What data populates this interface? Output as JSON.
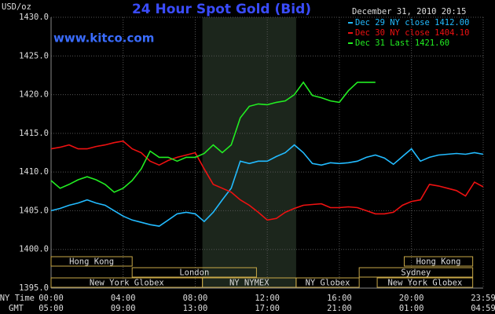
{
  "chart_data": {
    "type": "line",
    "title": "24 Hour Spot Gold (Bid)",
    "subtitle": "www.kitco.com",
    "timestamp": "December 31, 2010 20:15",
    "y_label": "USD/oz",
    "x_label": "NY Time",
    "x2_label": "GMT",
    "x": [
      0,
      0.5,
      1,
      1.5,
      2,
      2.5,
      3,
      3.5,
      4,
      4.5,
      5,
      5.5,
      6,
      6.5,
      7,
      7.5,
      8,
      8.5,
      9,
      9.5,
      10,
      10.5,
      11,
      11.5,
      12,
      12.5,
      13,
      13.5,
      14,
      14.5,
      15,
      15.5,
      16,
      16.5,
      17,
      17.5,
      18,
      18.5,
      19,
      19.5,
      20,
      20.5,
      21,
      21.5,
      22,
      22.5,
      23,
      23.5,
      23.98
    ],
    "series": [
      {
        "name": "Dec 29 NY close 1412.00",
        "color": "#22bbff",
        "values": [
          1405.0,
          1405.3,
          1405.7,
          1406.0,
          1406.4,
          1406.0,
          1405.7,
          1405.0,
          1404.3,
          1403.8,
          1403.5,
          1403.2,
          1403.0,
          1403.8,
          1404.6,
          1404.8,
          1404.6,
          1403.6,
          1404.8,
          1406.4,
          1407.9,
          1411.4,
          1411.1,
          1411.4,
          1411.4,
          1412.0,
          1412.5,
          1413.5,
          1412.5,
          1411.1,
          1410.9,
          1411.2,
          1411.1,
          1411.2,
          1411.4,
          1411.9,
          1412.2,
          1411.8,
          1411.0,
          1412.0,
          1413.0,
          1411.4,
          1411.9,
          1412.2,
          1412.3,
          1412.4,
          1412.3,
          1412.5,
          1412.3
        ]
      },
      {
        "name": "Dec 30 NY close 1404.10",
        "color": "#ee1111",
        "values": [
          1413.0,
          1413.2,
          1413.5,
          1413.0,
          1413.0,
          1413.3,
          1413.5,
          1413.8,
          1414.0,
          1413.0,
          1412.5,
          1411.4,
          1410.9,
          1411.5,
          1411.9,
          1412.2,
          1412.5,
          1410.4,
          1408.4,
          1407.9,
          1407.4,
          1406.4,
          1405.7,
          1404.8,
          1403.8,
          1404.0,
          1404.8,
          1405.3,
          1405.7,
          1405.8,
          1405.9,
          1405.4,
          1405.4,
          1405.5,
          1405.4,
          1405.0,
          1404.6,
          1404.6,
          1404.8,
          1405.7,
          1406.2,
          1406.4,
          1408.4,
          1408.2,
          1407.9,
          1407.6,
          1406.9,
          1408.7,
          1408.1
        ]
      },
      {
        "name": "Dec 31 Last 1421.60",
        "color": "#22ee22",
        "values": [
          1408.9,
          1407.9,
          1408.4,
          1409.0,
          1409.4,
          1409.0,
          1408.4,
          1407.4,
          1407.9,
          1408.9,
          1410.4,
          1412.7,
          1411.9,
          1411.9,
          1411.4,
          1411.9,
          1411.9,
          1412.4,
          1413.5,
          1412.5,
          1413.5,
          1417.0,
          1418.5,
          1418.8,
          1418.7,
          1419.0,
          1419.2,
          1420.0,
          1421.6,
          1419.9,
          1419.6,
          1419.2,
          1419.0,
          1420.5,
          1421.6,
          1421.6,
          1421.6,
          null,
          null,
          null,
          null,
          null,
          null,
          null,
          null,
          null,
          null,
          null,
          null
        ]
      }
    ],
    "xlim": [
      0,
      23.983
    ],
    "xticks": [
      {
        "value": 0,
        "label": "00:00"
      },
      {
        "value": 4,
        "label": "04:00"
      },
      {
        "value": 8,
        "label": "08:00"
      },
      {
        "value": 12,
        "label": "12:00"
      },
      {
        "value": 16,
        "label": "16:00"
      },
      {
        "value": 20,
        "label": "20:00"
      },
      {
        "value": 23.983,
        "label": "23:59"
      }
    ],
    "gmt_ticks": [
      {
        "value": 0,
        "label": "05:00"
      },
      {
        "value": 4,
        "label": "09:00"
      },
      {
        "value": 8,
        "label": "13:00"
      },
      {
        "value": 12,
        "label": "17:00"
      },
      {
        "value": 16,
        "label": "21:00"
      },
      {
        "value": 20,
        "label": "01:00"
      },
      {
        "value": 23.983,
        "label": "04:59"
      }
    ],
    "ylim": [
      1395,
      1430
    ],
    "yticks": [
      {
        "value": 1395,
        "label": "1395.0"
      },
      {
        "value": 1400,
        "label": "1400.0"
      },
      {
        "value": 1405,
        "label": "1405.0"
      },
      {
        "value": 1410,
        "label": "1410.0"
      },
      {
        "value": 1415,
        "label": "1415.0"
      },
      {
        "value": 1420,
        "label": "1420.0"
      },
      {
        "value": 1425,
        "label": "1425.0"
      },
      {
        "value": 1430,
        "label": "1430.0"
      }
    ],
    "grid": true,
    "session_rows": [
      [
        {
          "name": "Hong Kong",
          "start": 0,
          "end": 4.5
        },
        {
          "name": "Hong Kong",
          "start": 19.6,
          "end": 23.4
        }
      ],
      [
        {
          "name": "London",
          "start": 4.5,
          "end": 11.4
        },
        {
          "name": "Sydney",
          "start": 17.1,
          "end": 23.4
        }
      ],
      [
        {
          "name": "New York Globex",
          "start": 0,
          "end": 8.4
        },
        {
          "name": "NY NYMEX",
          "start": 8.4,
          "end": 13.6,
          "highlight": true
        },
        {
          "name": "NY Globex",
          "start": 13.6,
          "end": 17.1
        },
        {
          "name": "New York Globex",
          "start": 18.1,
          "end": 23.4
        }
      ]
    ]
  }
}
